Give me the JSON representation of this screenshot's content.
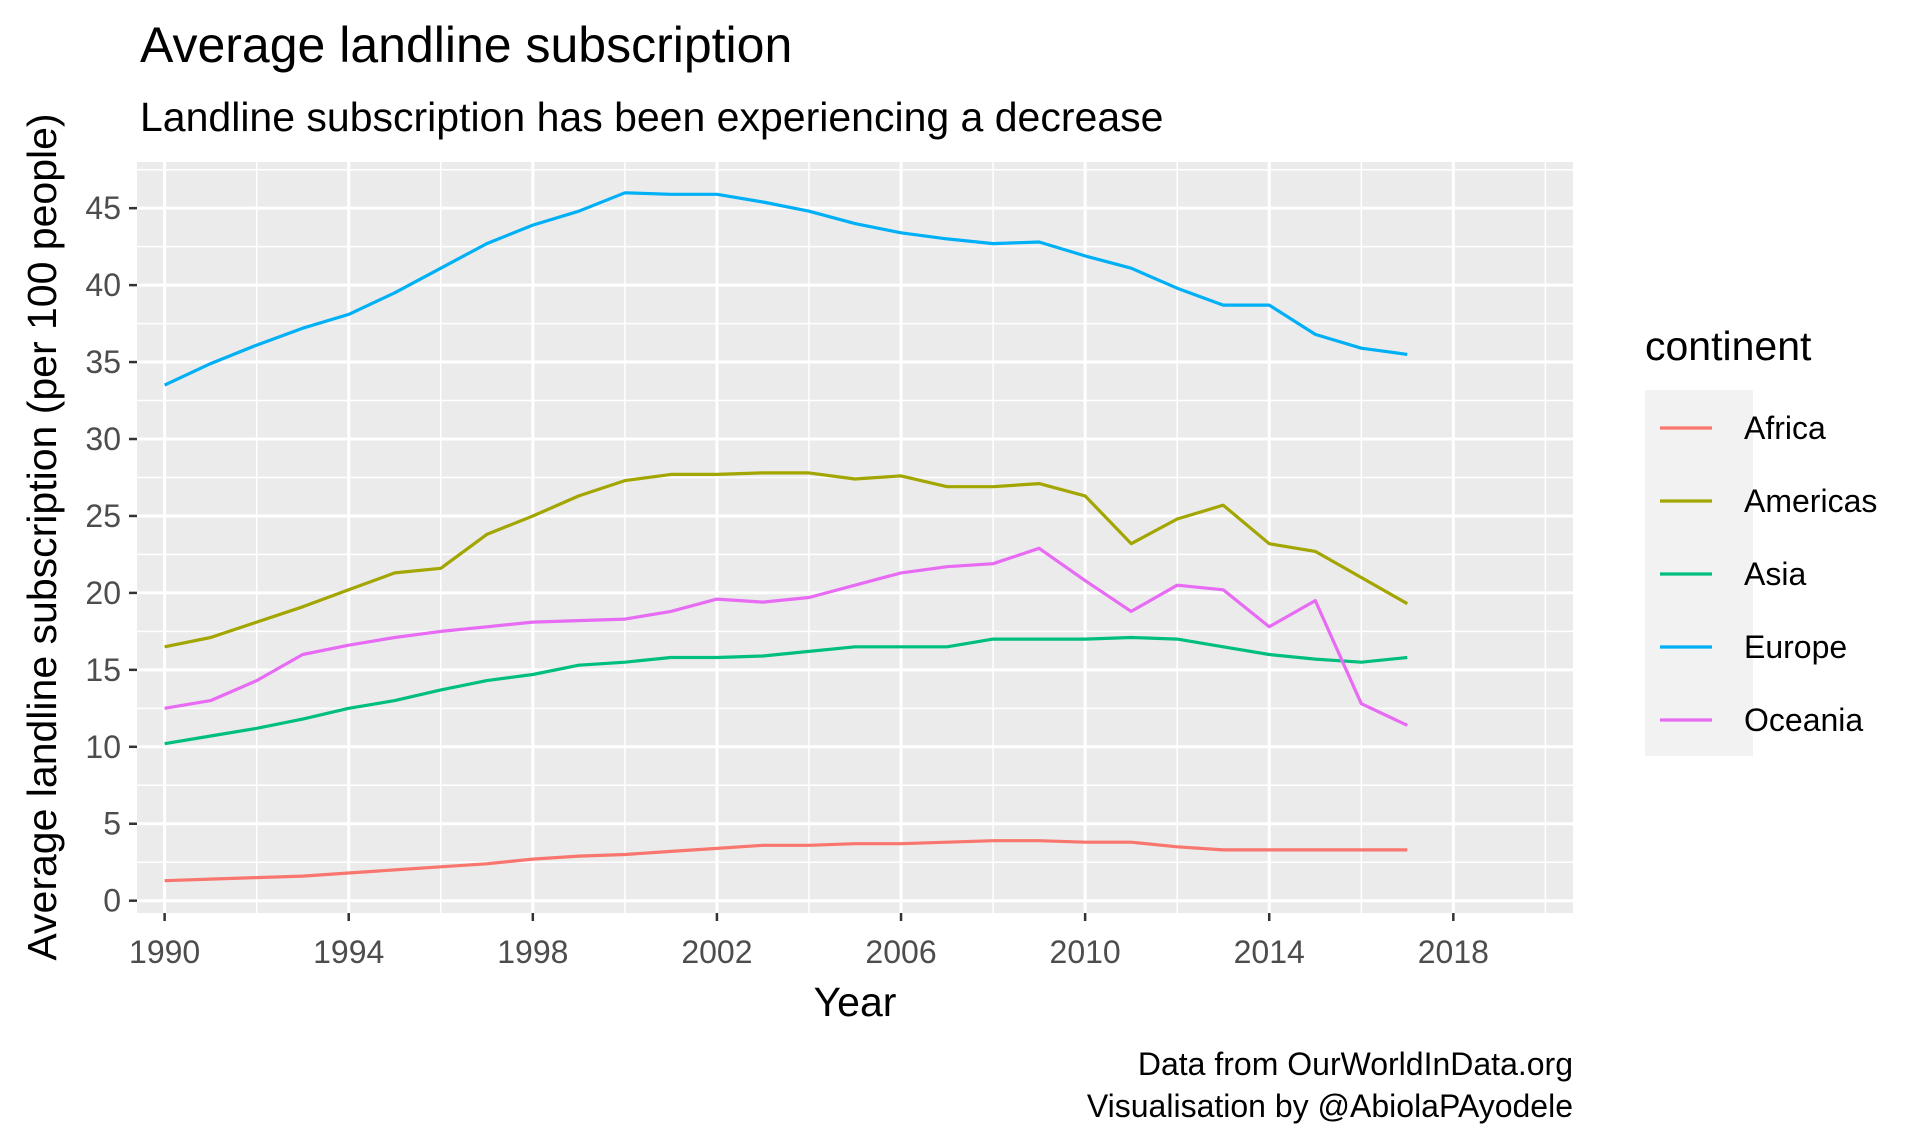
{
  "chart_data": {
    "type": "line",
    "title": "Average landline subscription",
    "subtitle": "Landline subscription has been experiencing a decrease",
    "xlabel": "Year",
    "ylabel": "Average landline subscription (per 100 people)",
    "caption": [
      "Data from OurWorldInData.org",
      "Visualisation by @AbiolaPAyodele"
    ],
    "legend_title": "continent",
    "legend_position": "right",
    "xlim": [
      1989.4,
      2020.6
    ],
    "ylim": [
      -0.8,
      48.0
    ],
    "x_ticks": [
      1990,
      1994,
      1998,
      2002,
      2006,
      2010,
      2014,
      2018
    ],
    "y_ticks": [
      0,
      5,
      10,
      15,
      20,
      25,
      30,
      35,
      40,
      45
    ],
    "grid": true,
    "panel_background": "#ebebeb",
    "x": [
      1990,
      1991,
      1992,
      1993,
      1994,
      1995,
      1996,
      1997,
      1998,
      1999,
      2000,
      2001,
      2002,
      2003,
      2004,
      2005,
      2006,
      2007,
      2008,
      2009,
      2010,
      2011,
      2012,
      2013,
      2014,
      2015,
      2016,
      2017
    ],
    "series": [
      {
        "name": "Africa",
        "color": "#F8766D",
        "values": [
          1.3,
          1.4,
          1.5,
          1.6,
          1.8,
          2.0,
          2.2,
          2.4,
          2.7,
          2.9,
          3.0,
          3.2,
          3.4,
          3.6,
          3.6,
          3.7,
          3.7,
          3.8,
          3.9,
          3.9,
          3.8,
          3.8,
          3.5,
          3.3,
          3.3,
          3.3,
          3.3,
          3.3
        ]
      },
      {
        "name": "Americas",
        "color": "#A3A500",
        "values": [
          16.5,
          17.1,
          18.1,
          19.1,
          20.2,
          21.3,
          21.6,
          23.8,
          25.0,
          26.3,
          27.3,
          27.7,
          27.7,
          27.8,
          27.8,
          27.4,
          27.6,
          26.9,
          26.9,
          27.1,
          26.3,
          23.2,
          24.8,
          25.7,
          23.2,
          22.7,
          21.0,
          19.3
        ]
      },
      {
        "name": "Asia",
        "color": "#00BF7D",
        "values": [
          10.2,
          10.7,
          11.2,
          11.8,
          12.5,
          13.0,
          13.7,
          14.3,
          14.7,
          15.3,
          15.5,
          15.8,
          15.8,
          15.9,
          16.2,
          16.5,
          16.5,
          16.5,
          17.0,
          17.0,
          17.0,
          17.1,
          17.0,
          16.5,
          16.0,
          15.7,
          15.5,
          15.8
        ]
      },
      {
        "name": "Europe",
        "color": "#00B0F6",
        "values": [
          33.5,
          34.9,
          36.1,
          37.2,
          38.1,
          39.5,
          41.1,
          42.7,
          43.9,
          44.8,
          46.0,
          45.9,
          45.9,
          45.4,
          44.8,
          44.0,
          43.4,
          43.0,
          42.7,
          42.8,
          41.9,
          41.1,
          39.8,
          38.7,
          38.7,
          36.8,
          35.9,
          35.5
        ]
      },
      {
        "name": "Oceania",
        "color": "#E76BF3",
        "values": [
          12.5,
          13.0,
          14.3,
          16.0,
          16.6,
          17.1,
          17.5,
          17.8,
          18.1,
          18.2,
          18.3,
          18.8,
          19.6,
          19.4,
          19.7,
          20.5,
          21.3,
          21.7,
          21.9,
          22.9,
          20.8,
          18.8,
          20.5,
          20.2,
          17.8,
          19.5,
          12.8,
          11.4
        ]
      }
    ]
  }
}
